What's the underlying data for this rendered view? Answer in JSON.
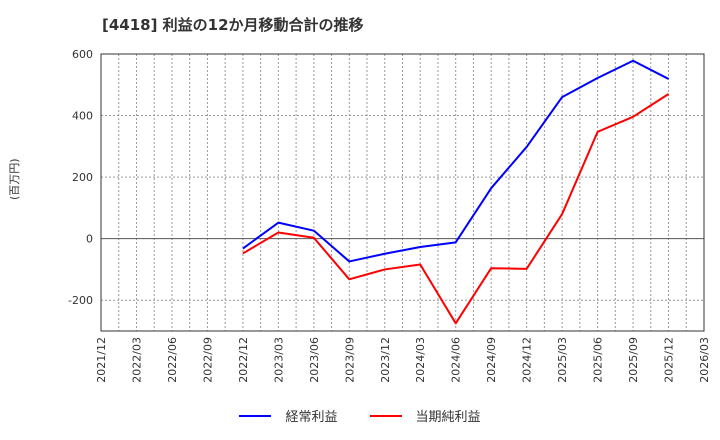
{
  "title": "[4418]  利益の12か月移動合計の推移",
  "y_axis_label": "(百万円)",
  "legend": [
    {
      "label": "経常利益",
      "color": "#0000ff"
    },
    {
      "label": "当期純利益",
      "color": "#ff0000"
    }
  ],
  "chart_data": {
    "type": "line",
    "title": "[4418]  利益の12か月移動合計の推移",
    "xlabel": "",
    "ylabel": "(百万円)",
    "ylim": [
      -300,
      600
    ],
    "yticks": [
      600,
      400,
      200,
      0,
      -200
    ],
    "grid": true,
    "legend_position": "bottom",
    "x_ticks": [
      "2021/12",
      "2022/03",
      "2022/06",
      "2022/09",
      "2022/12",
      "2023/03",
      "2023/06",
      "2023/09",
      "2023/12",
      "2024/03",
      "2024/06",
      "2024/09",
      "2024/12",
      "2025/03",
      "2025/06",
      "2025/09",
      "2025/12",
      "2026/03"
    ],
    "x": [
      "2022/12",
      "2023/03",
      "2023/06",
      "2023/09",
      "2023/12",
      "2024/03",
      "2024/06",
      "2024/09",
      "2024/12",
      "2025/03",
      "2025/06",
      "2025/09",
      "2025/12"
    ],
    "series": [
      {
        "name": "経常利益",
        "color": "#0000ff",
        "values": [
          -32,
          52,
          26,
          -74,
          -49,
          -27,
          -12,
          164,
          298,
          460,
          522,
          578,
          519
        ]
      },
      {
        "name": "当期純利益",
        "color": "#ff0000",
        "values": [
          -48,
          20,
          3,
          -132,
          -100,
          -84,
          -275,
          -96,
          -98,
          80,
          347,
          396,
          470
        ]
      }
    ]
  }
}
